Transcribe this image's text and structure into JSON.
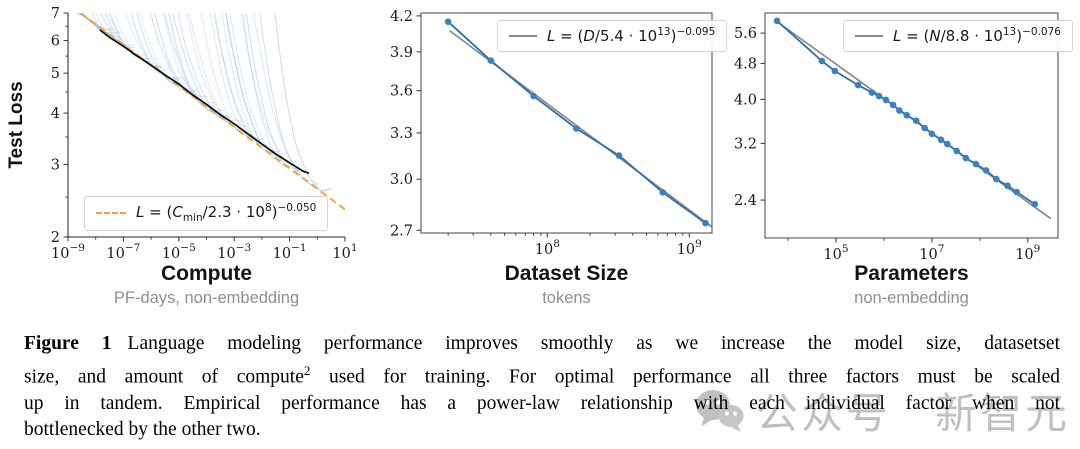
{
  "page": {
    "background": "#ffffff"
  },
  "caption": {
    "fig_label": "Figure 1",
    "line1": "Language modeling performance improves smoothly as we increase the model size, datasetset",
    "line2a": "size, and amount of compute",
    "line2_sup": "2",
    "line2b": " used for training.  For optimal performance all three factors must be scaled",
    "line3": "up in tandem.  Empirical performance has a power-law relationship with each individual factor when not",
    "line4": "bottlenecked by the other two."
  },
  "watermark": {
    "icon": "wechat-icon",
    "text1": "公众号",
    "text2": "新智元",
    "color": "#8c8c8c"
  },
  "chart_data": [
    {
      "type": "line",
      "name": "compute-scaling",
      "title": "Compute",
      "subtitle": "PF-days, non-embedding",
      "ylabel": "Test Loss",
      "x_log_range": [
        -9,
        1
      ],
      "y_range": [
        2,
        7
      ],
      "x_ticks": [
        {
          "lg": -9,
          "base": "10",
          "exp": "−9"
        },
        {
          "lg": -7,
          "base": "10",
          "exp": "−7"
        },
        {
          "lg": -5,
          "base": "10",
          "exp": "−5"
        },
        {
          "lg": -3,
          "base": "10",
          "exp": "−3"
        },
        {
          "lg": -1,
          "base": "10",
          "exp": "−1"
        },
        {
          "lg": 1,
          "base": "10",
          "exp": "1"
        }
      ],
      "x_minor_lg": [
        -8,
        -6,
        -4,
        -2,
        0
      ],
      "y_ticks": [
        {
          "v": 7,
          "label": "7"
        },
        {
          "v": 6,
          "label": "6"
        },
        {
          "v": 5,
          "label": "5"
        },
        {
          "v": 4,
          "label": "4"
        },
        {
          "v": 3,
          "label": "3"
        },
        {
          "v": 2,
          "label": "2"
        }
      ],
      "y_minor": [
        6.5,
        5.5,
        4.5,
        3.5,
        2.5
      ],
      "legend": {
        "v1": "L",
        "eq": " = (",
        "v2": "C",
        "sub": "min",
        "denom": "/2.3 · 10",
        "p1": "8",
        "close": ")",
        "p2": "−0.050"
      },
      "fit": {
        "scale": 230000000.0,
        "exp": -0.05,
        "color": "#f2a43c",
        "dashed": true,
        "x_draw_range": [
          2.9e-09,
          10
        ]
      },
      "envelope": {
        "color": "#0d0d0d",
        "points": [
          [
            -7.85,
            6.36
          ],
          [
            -7.5,
            6.1
          ],
          [
            -7.0,
            5.82
          ],
          [
            -6.5,
            5.5
          ],
          [
            -6.0,
            5.24
          ],
          [
            -5.5,
            4.95
          ],
          [
            -5.0,
            4.7
          ],
          [
            -4.5,
            4.43
          ],
          [
            -4.0,
            4.19
          ],
          [
            -3.5,
            3.97
          ],
          [
            -3.0,
            3.76
          ],
          [
            -2.5,
            3.55
          ],
          [
            -2.0,
            3.36
          ],
          [
            -1.5,
            3.19
          ],
          [
            -1.0,
            3.03
          ],
          [
            -0.5,
            2.89
          ],
          [
            -0.3,
            2.85
          ]
        ]
      },
      "bundle": {
        "description": "individual training-run learning curves (light blue)",
        "count": 42,
        "color": "#6f9fd0",
        "min_opacity": 0.18,
        "max_opacity": 0.34,
        "lg_end_range": [
          -7.4,
          0.55
        ],
        "top_loss": 7.6
      }
    },
    {
      "type": "scatter-line",
      "name": "dataset-scaling",
      "title": "Dataset Size",
      "subtitle": "tokens",
      "x_log_range": [
        7.11,
        9.16
      ],
      "y_range": [
        2.685,
        4.225
      ],
      "x_ticks": [
        {
          "lg": 8,
          "base": "10",
          "exp": "8"
        },
        {
          "lg": 9,
          "base": "10",
          "exp": "9"
        }
      ],
      "x_minor_mode": "mantissa",
      "y_ticks": [
        {
          "v": 4.2,
          "label": "4.2"
        },
        {
          "v": 3.9,
          "label": "3.9"
        },
        {
          "v": 3.6,
          "label": "3.6"
        },
        {
          "v": 3.3,
          "label": "3.3"
        },
        {
          "v": 3.0,
          "label": "3.0"
        },
        {
          "v": 2.7,
          "label": "2.7"
        }
      ],
      "legend": {
        "v1": "L",
        "eq": " = (",
        "v2": "D",
        "sub": "",
        "denom": "/5.4 · 10",
        "p1": "13",
        "close": ")",
        "p2": "−0.095"
      },
      "fit": {
        "scale": 54000000000000.0,
        "exp": -0.095,
        "color": "#8a8a8a",
        "dashed": false,
        "x_draw_range": [
          20500000.0,
          1450000000.0
        ]
      },
      "points": {
        "x": [
          20000000.0,
          40000000.0,
          80000000.0,
          160000000.0,
          320000000.0,
          650000000.0,
          1300000000.0
        ],
        "y": [
          4.15,
          3.83,
          3.56,
          3.33,
          3.15,
          2.92,
          2.74
        ]
      },
      "line_color": "#2f6fad",
      "marker_color": "#3d80c1"
    },
    {
      "type": "scatter-line",
      "name": "parameters-scaling",
      "title": "Parameters",
      "subtitle": "non-embedding",
      "x_log_range": [
        3.52,
        9.63
      ],
      "y_range": [
        1.98,
        6.2
      ],
      "x_ticks": [
        {
          "lg": 5,
          "base": "10",
          "exp": "5"
        },
        {
          "lg": 7,
          "base": "10",
          "exp": "7"
        },
        {
          "lg": 9,
          "base": "10",
          "exp": "9"
        }
      ],
      "x_minor_lg": [
        4,
        6,
        8
      ],
      "y_ticks": [
        {
          "v": 5.6,
          "label": "5.6"
        },
        {
          "v": 4.8,
          "label": "4.8"
        },
        {
          "v": 4.0,
          "label": "4.0"
        },
        {
          "v": 3.2,
          "label": "3.2"
        },
        {
          "v": 2.4,
          "label": "2.4"
        }
      ],
      "legend": {
        "v1": "L",
        "eq": " = (",
        "v2": "N",
        "sub": "",
        "denom": "/8.8 · 10",
        "p1": "13",
        "close": ")",
        "p2": "−0.076"
      },
      "fit": {
        "scale": 88000000000000.0,
        "exp": -0.076,
        "color": "#8a8a8a",
        "dashed": false,
        "x_draw_range": [
          5500.0,
          3000000000.0
        ]
      },
      "points": {
        "x": [
          5900.0,
          51000.0,
          95000.0,
          290000.0,
          560000.0,
          790000.0,
          1100000.0,
          1550000.0,
          2100000.0,
          3000000.0,
          4700000.0,
          7100000.0,
          10000000.0,
          15500000.0,
          21000000.0,
          33000000.0,
          51000000.0,
          83000000.0,
          135000000.0,
          220000000.0,
          380000000.0,
          590000000.0,
          1400000000.0
        ],
        "y": [
          5.96,
          4.86,
          4.62,
          4.3,
          4.14,
          4.07,
          3.99,
          3.89,
          3.78,
          3.69,
          3.59,
          3.46,
          3.36,
          3.26,
          3.19,
          3.08,
          2.97,
          2.88,
          2.79,
          2.67,
          2.58,
          2.5,
          2.35
        ]
      },
      "line_color": "#2f6fad",
      "marker_color": "#3d80c1"
    }
  ]
}
